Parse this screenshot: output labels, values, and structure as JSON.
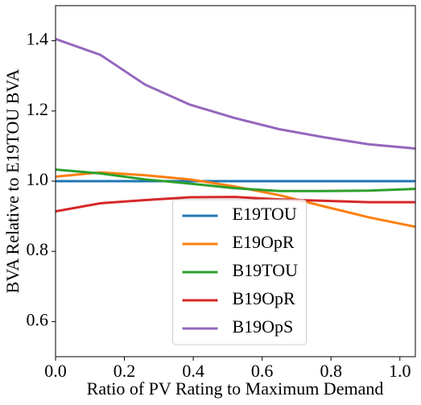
{
  "chart_data": {
    "type": "line",
    "xlabel": "Ratio of PV Rating to Maximum Demand",
    "ylabel": "BVA Relative to E19TOU BVA",
    "x": [
      0,
      0.13,
      0.26,
      0.39,
      0.52,
      0.65,
      0.78,
      0.91,
      1.045
    ],
    "series": [
      {
        "name": "E19TOU",
        "color": "#1f77b4",
        "values": [
          1.0,
          1.0,
          1.0,
          1.0,
          1.0,
          1.0,
          1.0,
          1.0,
          1.0
        ]
      },
      {
        "name": "E19OpR",
        "color": "#ff7f0e",
        "values": [
          1.013,
          1.025,
          1.017,
          1.005,
          0.985,
          0.96,
          0.928,
          0.897,
          0.87
        ]
      },
      {
        "name": "B19TOU",
        "color": "#2ca02c",
        "values": [
          1.033,
          1.022,
          1.005,
          0.993,
          0.98,
          0.972,
          0.972,
          0.973,
          0.978
        ]
      },
      {
        "name": "B19OpR",
        "color": "#d62728",
        "values": [
          0.914,
          0.937,
          0.946,
          0.954,
          0.955,
          0.948,
          0.944,
          0.94,
          0.94
        ]
      },
      {
        "name": "B19OpS",
        "color": "#9467bd",
        "values": [
          1.405,
          1.36,
          1.275,
          1.218,
          1.18,
          1.148,
          1.125,
          1.105,
          1.093
        ]
      }
    ],
    "xlim": [
      0,
      1.045
    ],
    "ylim": [
      0.5,
      1.5
    ],
    "xticks": [
      {
        "value": 0,
        "label": "0.0"
      },
      0.2,
      0.4,
      0.6,
      0.8,
      {
        "value": 1,
        "label": "1.0"
      }
    ],
    "yticks": [
      0.6,
      0.8,
      {
        "value": 1,
        "label": "1.0"
      },
      1.2,
      1.4
    ],
    "legend": "lower center",
    "grid": false
  }
}
